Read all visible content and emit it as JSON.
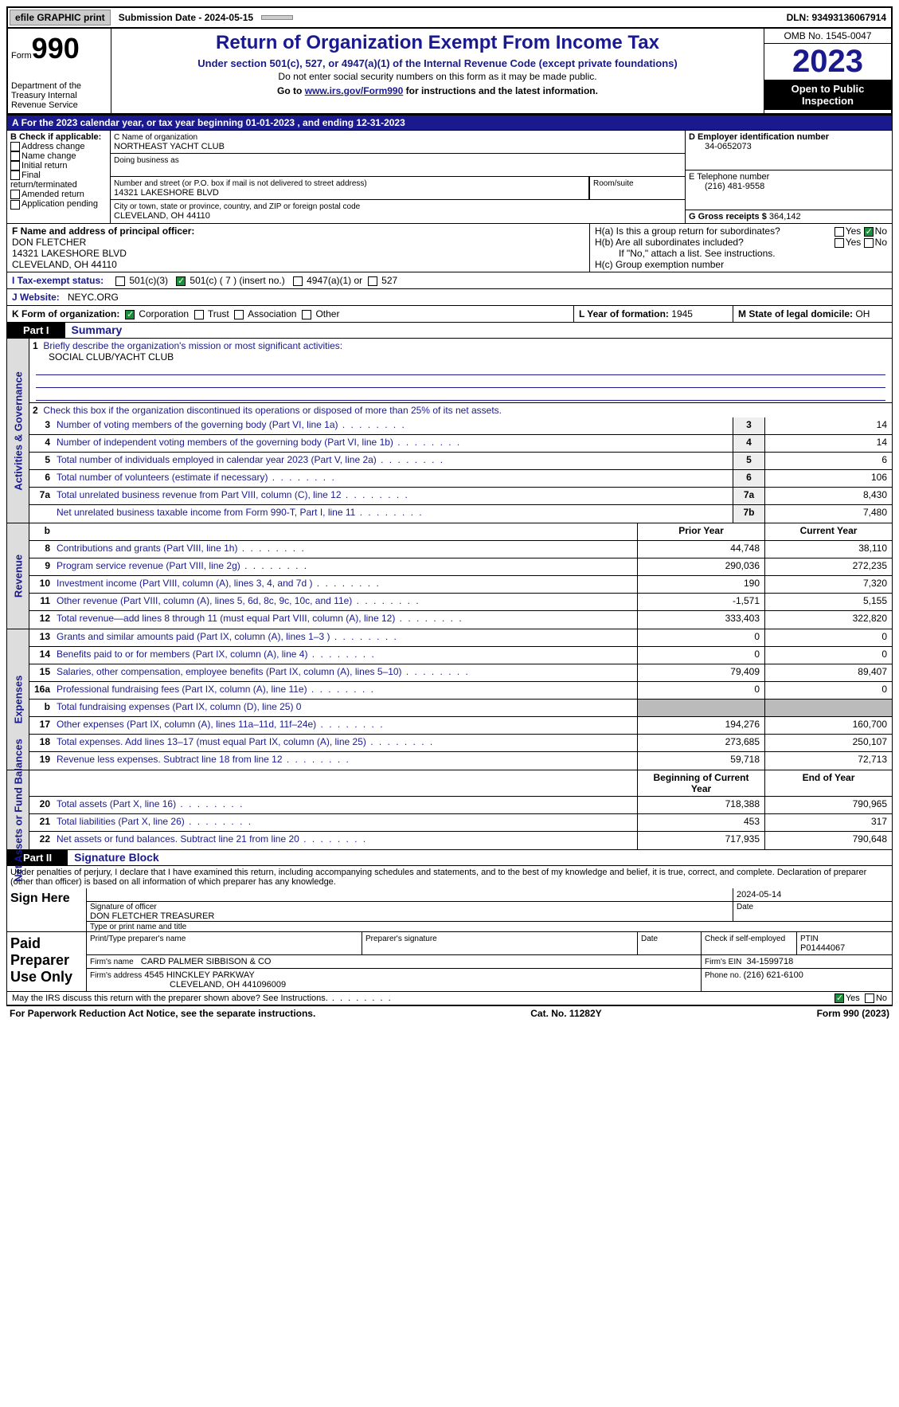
{
  "topbar": {
    "efile": "efile GRAPHIC print",
    "submission": "Submission Date - 2024-05-15",
    "dln": "DLN: 93493136067914"
  },
  "header": {
    "form_label": "Form",
    "form_num": "990",
    "dept": "Department of the Treasury Internal Revenue Service",
    "title": "Return of Organization Exempt From Income Tax",
    "sub1": "Under section 501(c), 527, or 4947(a)(1) of the Internal Revenue Code (except private foundations)",
    "sub2": "Do not enter social security numbers on this form as it may be made public.",
    "sub3_pre": "Go to ",
    "sub3_link": "www.irs.gov/Form990",
    "sub3_post": " for instructions and the latest information.",
    "omb": "OMB No. 1545-0047",
    "year": "2023",
    "open": "Open to Public Inspection"
  },
  "lineA": "For the 2023 calendar year, or tax year beginning 01-01-2023    , and ending 12-31-2023",
  "boxB": {
    "label": "B Check if applicable:",
    "items": [
      "Address change",
      "Name change",
      "Initial return",
      "Final return/terminated",
      "Amended return",
      "Application pending"
    ]
  },
  "boxC": {
    "c_label": "C Name of organization",
    "org": "NORTHEAST YACHT CLUB",
    "dba": "Doing business as",
    "addr_label": "Number and street (or P.O. box if mail is not delivered to street address)",
    "room": "Room/suite",
    "addr": "14321 LAKESHORE BLVD",
    "city_label": "City or town, state or province, country, and ZIP or foreign postal code",
    "city": "CLEVELAND, OH  44110"
  },
  "boxD": {
    "label": "D Employer identification number",
    "val": "34-0652073"
  },
  "boxE": {
    "label": "E Telephone number",
    "val": "(216) 481-9558"
  },
  "boxG": {
    "label": "G Gross receipts $",
    "val": "364,142"
  },
  "boxF": {
    "label": "F  Name and address of principal officer:",
    "name": "DON FLETCHER",
    "addr": "14321 LAKESHORE BLVD",
    "city": "CLEVELAND, OH  44110"
  },
  "boxH": {
    "a": "H(a)  Is this a group return for subordinates?",
    "b": "H(b)  Are all subordinates included?",
    "b2": "If \"No,\" attach a list. See instructions.",
    "c": "H(c)  Group exemption number",
    "yes": "Yes",
    "no": "No"
  },
  "rowI": {
    "label": "I    Tax-exempt status:",
    "o1": "501(c)(3)",
    "o2": "501(c) ( 7 ) (insert no.)",
    "o3": "4947(a)(1) or",
    "o4": "527"
  },
  "rowJ": {
    "label": "J    Website:",
    "val": "NEYC.ORG"
  },
  "rowK": {
    "label": "K Form of organization:",
    "o1": "Corporation",
    "o2": "Trust",
    "o3": "Association",
    "o4": "Other"
  },
  "rowL": {
    "label": "L Year of formation:",
    "val": "1945"
  },
  "rowM": {
    "label": "M State of legal domicile:",
    "val": "OH"
  },
  "part1": {
    "bar": "Part I",
    "title": "Summary"
  },
  "summary": {
    "q1": "Briefly describe the organization's mission or most significant activities:",
    "q1v": "SOCIAL CLUB/YACHT CLUB",
    "q2": "Check this box          if the organization discontinued its operations or disposed of more than 25% of its net assets.",
    "rows_gov": [
      {
        "n": "3",
        "d": "Number of voting members of the governing body (Part VI, line 1a)",
        "b": "3",
        "v": "14"
      },
      {
        "n": "4",
        "d": "Number of independent voting members of the governing body (Part VI, line 1b)",
        "b": "4",
        "v": "14"
      },
      {
        "n": "5",
        "d": "Total number of individuals employed in calendar year 2023 (Part V, line 2a)",
        "b": "5",
        "v": "6"
      },
      {
        "n": "6",
        "d": "Total number of volunteers (estimate if necessary)",
        "b": "6",
        "v": "106"
      },
      {
        "n": "7a",
        "d": "Total unrelated business revenue from Part VIII, column (C), line 12",
        "b": "7a",
        "v": "8,430"
      },
      {
        "n": "",
        "d": "Net unrelated business taxable income from Form 990-T, Part I, line 11",
        "b": "7b",
        "v": "7,480"
      }
    ],
    "hdr_b": "b",
    "hdr_prior": "Prior Year",
    "hdr_curr": "Current Year",
    "rows_rev": [
      {
        "n": "8",
        "d": "Contributions and grants (Part VIII, line 1h)",
        "p": "44,748",
        "c": "38,110"
      },
      {
        "n": "9",
        "d": "Program service revenue (Part VIII, line 2g)",
        "p": "290,036",
        "c": "272,235"
      },
      {
        "n": "10",
        "d": "Investment income (Part VIII, column (A), lines 3, 4, and 7d )",
        "p": "190",
        "c": "7,320"
      },
      {
        "n": "11",
        "d": "Other revenue (Part VIII, column (A), lines 5, 6d, 8c, 9c, 10c, and 11e)",
        "p": "-1,571",
        "c": "5,155"
      },
      {
        "n": "12",
        "d": "Total revenue—add lines 8 through 11 (must equal Part VIII, column (A), line 12)",
        "p": "333,403",
        "c": "322,820"
      }
    ],
    "rows_exp": [
      {
        "n": "13",
        "d": "Grants and similar amounts paid (Part IX, column (A), lines 1–3 )",
        "p": "0",
        "c": "0"
      },
      {
        "n": "14",
        "d": "Benefits paid to or for members (Part IX, column (A), line 4)",
        "p": "0",
        "c": "0"
      },
      {
        "n": "15",
        "d": "Salaries, other compensation, employee benefits (Part IX, column (A), lines 5–10)",
        "p": "79,409",
        "c": "89,407"
      },
      {
        "n": "16a",
        "d": "Professional fundraising fees (Part IX, column (A), line 11e)",
        "p": "0",
        "c": "0"
      },
      {
        "n": "b",
        "d": "Total fundraising expenses (Part IX, column (D), line 25) 0",
        "p": "",
        "c": "",
        "shade": true
      },
      {
        "n": "17",
        "d": "Other expenses (Part IX, column (A), lines 11a–11d, 11f–24e)",
        "p": "194,276",
        "c": "160,700"
      },
      {
        "n": "18",
        "d": "Total expenses. Add lines 13–17 (must equal Part IX, column (A), line 25)",
        "p": "273,685",
        "c": "250,107"
      },
      {
        "n": "19",
        "d": "Revenue less expenses. Subtract line 18 from line 12",
        "p": "59,718",
        "c": "72,713"
      }
    ],
    "hdr_beg": "Beginning of Current Year",
    "hdr_end": "End of Year",
    "rows_net": [
      {
        "n": "20",
        "d": "Total assets (Part X, line 16)",
        "p": "718,388",
        "c": "790,965"
      },
      {
        "n": "21",
        "d": "Total liabilities (Part X, line 26)",
        "p": "453",
        "c": "317"
      },
      {
        "n": "22",
        "d": "Net assets or fund balances. Subtract line 21 from line 20",
        "p": "717,935",
        "c": "790,648"
      }
    ],
    "vtab_gov": "Activities & Governance",
    "vtab_rev": "Revenue",
    "vtab_exp": "Expenses",
    "vtab_net": "Net Assets or Fund Balances"
  },
  "part2": {
    "bar": "Part II",
    "title": "Signature Block"
  },
  "sig": {
    "perjury": "Under penalties of perjury, I declare that I have examined this return, including accompanying schedules and statements, and to the best of my knowledge and belief, it is true, correct, and complete. Declaration of preparer (other than officer) is based on all information of which preparer has any knowledge.",
    "signhere": "Sign Here",
    "date": "2024-05-14",
    "sig_officer": "Signature of officer",
    "officer": "DON FLETCHER  TREASURER",
    "typeprint": "Type or print name and title",
    "paid": "Paid Preparer Use Only",
    "prep_name": "Print/Type preparer's name",
    "prep_sig": "Preparer's signature",
    "prep_date": "Date",
    "check_self": "Check          if self-employed",
    "ptin_l": "PTIN",
    "ptin": "P01444067",
    "firm_name_l": "Firm's name",
    "firm_name": "CARD PALMER SIBBISON & CO",
    "firm_ein_l": "Firm's EIN",
    "firm_ein": "34-1599718",
    "firm_addr_l": "Firm's address",
    "firm_addr1": "4545 HINCKLEY PARKWAY",
    "firm_addr2": "CLEVELAND, OH  441096009",
    "phone_l": "Phone no.",
    "phone": "(216) 621-6100",
    "discuss": "May the IRS discuss this return with the preparer shown above? See Instructions.",
    "yes": "Yes",
    "no": "No"
  },
  "footer": {
    "left": "For Paperwork Reduction Act Notice, see the separate instructions.",
    "mid": "Cat. No. 11282Y",
    "right": "Form 990 (2023)"
  }
}
